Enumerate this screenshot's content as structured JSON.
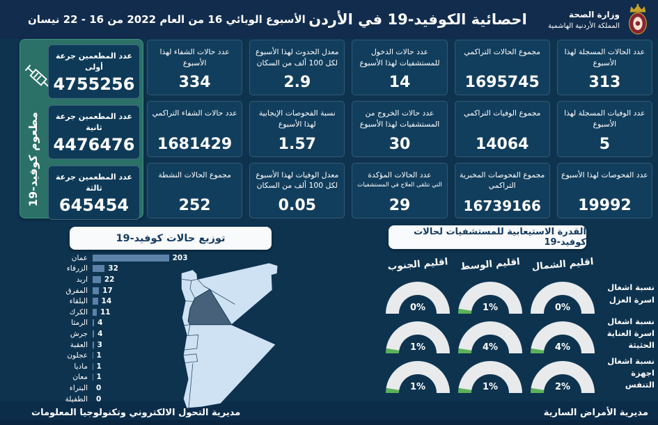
{
  "colors": {
    "background": "#0d334f",
    "header": "#122c4d",
    "card": "#123e5d",
    "teal_panel": "#2b7168",
    "bar": "#5d82a8",
    "map_fill": "#cfe2f3",
    "map_highlight": "#47617a",
    "gauge_arc": "#e8eaec",
    "gauge_fill": "#5cb25a",
    "badge_text": "#14395e"
  },
  "header": {
    "ministry_name": "وزارة الصحة",
    "kingdom_name": "المملكة الأردنية الهاشمية",
    "title": "احصائية الكوفيد-19 في الأردن",
    "week_label": "الأسبوع الوبائي 16 من العام 2022 من 16 - 22 نيسان"
  },
  "vaccination": {
    "side_label": "مطعوم كوفيد-19",
    "cards": [
      {
        "label": "عدد المطعمين جرعة أولى",
        "value": "4755256"
      },
      {
        "label": "عدد المطعمين جرعة ثانية",
        "value": "4476476"
      },
      {
        "label": "عدد المطعمين جرعة ثالثة",
        "value": "645454"
      }
    ]
  },
  "stats": {
    "columns": [
      [
        {
          "label": "عدد الحالات المسجلة لهذا الأسبوع",
          "value": "313"
        },
        {
          "label": "عدد الوفيات المسجلة لهذا الأسبوع",
          "value": "5"
        },
        {
          "label": "عدد الفحوصات لهذا الأسبوع",
          "value": "19992"
        }
      ],
      [
        {
          "label": "مجموع الحالات التراكمي",
          "value": "1695745"
        },
        {
          "label": "مجموع الوفيات التراكمي",
          "value": "14064"
        },
        {
          "label": "مجموع الفحوصات المخبرية التراكمي",
          "value": "16739166"
        }
      ],
      [
        {
          "label": "عدد حالات الدخول للمستشفيات لهذا الأسبوع",
          "value": "14"
        },
        {
          "label": "عدد حالات الخروج من المستشفيات لهذا الأسبوع",
          "value": "30"
        },
        {
          "label": "عدد الحالات المؤكدة",
          "sublabel": "التي تتلقى العلاج في المستشفيات",
          "value": "29"
        }
      ],
      [
        {
          "label": "معدل الحدوث لهذا الأسبوع لكل 100 ألف من السكان",
          "value": "2.9"
        },
        {
          "label": "نسبة الفحوصات الإيجابية لهذا الأسبوع",
          "value": "1.57"
        },
        {
          "label": "معدل الوفيات لهذا الأسبوع لكل 100 ألف من السكان",
          "value": "0.05"
        }
      ],
      [
        {
          "label": "عدد حالات الشفاء لهذا الأسبوع",
          "value": "334"
        },
        {
          "label": "عدد حالات الشفاء التراكمي",
          "value": "1681429"
        },
        {
          "label": "مجموع الحالات النشطة",
          "value": "252"
        }
      ]
    ]
  },
  "chart_data": [
    {
      "type": "bar",
      "title": "توزيع حالات كوفيد-19",
      "orientation": "horizontal",
      "categories": [
        "عمان",
        "الزرقاء",
        "اربد",
        "المفرق",
        "البلقاء",
        "الكرك",
        "الرمثا",
        "جرش",
        "العقبة",
        "عجلون",
        "ماديا",
        "معان",
        "البتراء",
        "الطفيلة"
      ],
      "values": [
        203,
        32,
        22,
        17,
        14,
        11,
        4,
        4,
        3,
        1,
        1,
        1,
        0,
        0
      ],
      "xlim": [
        0,
        210
      ],
      "bar_color": "#5d82a8",
      "value_labels": true
    },
    {
      "type": "gauge",
      "title": "القدرة الاستيعابية للمستشفيات لحالات كوفيد-19",
      "unit": "%",
      "columns": [
        "اقليم الشمال",
        "اقليم الوسط",
        "اقليم الجنوب"
      ],
      "rows": [
        {
          "label": "نسبة اشغال اسرة العزل",
          "values": [
            0,
            1,
            0
          ]
        },
        {
          "label": "نسبة اشغال اسرة العناية الحثيثة",
          "values": [
            4,
            4,
            1
          ]
        },
        {
          "label": "نسبة اشغال اجهزة التنفس",
          "values": [
            2,
            1,
            1
          ]
        }
      ],
      "arc_color": "#e8eaec",
      "fill_color": "#5cb25a"
    }
  ],
  "footer": {
    "left": "مديرية التحول الالكتروني وتكنولوجيا المعلومات",
    "right": "مديرية الأمراض السارية"
  }
}
